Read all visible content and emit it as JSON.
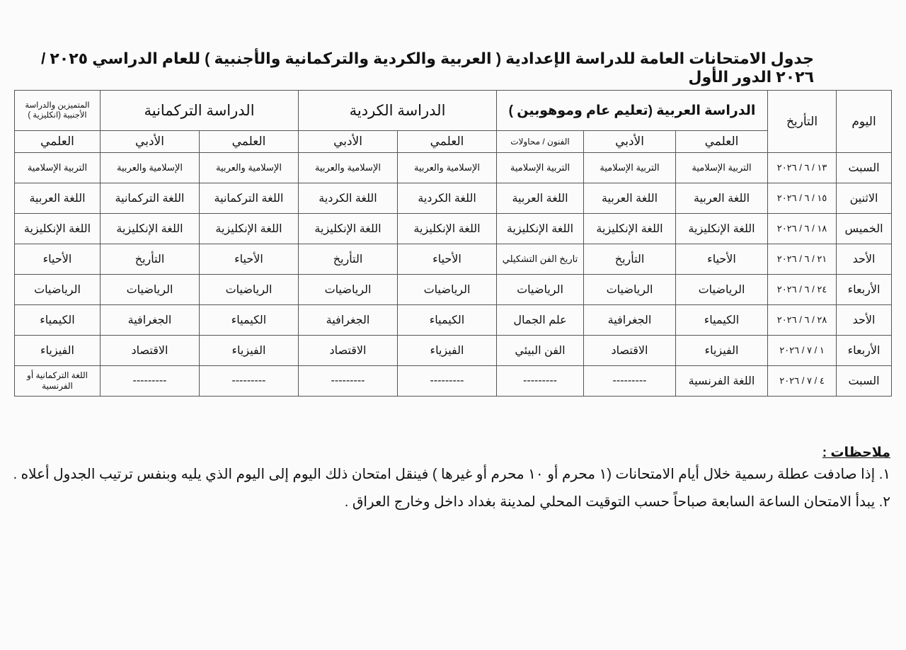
{
  "title": "جدول الامتحانات العامة للدراسة الإعدادية ( العربية والكردية والتركمانية والأجنبية ) للعام الدراسي ٢٠٢٥ / ٢٠٢٦ الدور الأول",
  "table": {
    "headers": {
      "day": "اليوم",
      "date": "التأريخ",
      "arabic_group": "الدراسة العربية (تعليم عام وموهوبين )",
      "kurdish_group": "الدراسة الكردية",
      "turkmen_group": "الدراسة التركمانية",
      "excellent_group": "المتميزين والدراسة الأجنبية (انكليزية )",
      "sub": [
        "العلمي",
        "الأدبي",
        "الفنون / محاولات",
        "العلمي",
        "الأدبي",
        "العلمي",
        "الأدبي",
        "العلمي"
      ]
    },
    "rows": [
      {
        "day": "السبت",
        "date": "١٣ / ٦ / ٢٠٢٦",
        "cells": [
          "التربية الإسلامية",
          "التربية الإسلامية",
          "التربية الإسلامية",
          "الإسلامية والعربية",
          "الإسلامية والعربية",
          "الإسلامية والعربية",
          "الإسلامية والعربية",
          "التربية الإسلامية"
        ]
      },
      {
        "day": "الاثنين",
        "date": "١٥ / ٦ / ٢٠٢٦",
        "cells": [
          "اللغة العربية",
          "اللغة العربية",
          "اللغة العربية",
          "اللغة الكردية",
          "اللغة الكردية",
          "اللغة التركمانية",
          "اللغة التركمانية",
          "اللغة العربية"
        ]
      },
      {
        "day": "الخميس",
        "date": "١٨ / ٦ / ٢٠٢٦",
        "cells": [
          "اللغة الإنكليزية",
          "اللغة الإنكليزية",
          "اللغة الإنكليزية",
          "اللغة الإنكليزية",
          "اللغة الإنكليزية",
          "اللغة الإنكليزية",
          "اللغة الإنكليزية",
          "اللغة الإنكليزية"
        ]
      },
      {
        "day": "الأحد",
        "date": "٢١ / ٦ / ٢٠٢٦",
        "cells": [
          "الأحياء",
          "التأريخ",
          "تاريخ الفن التشكيلي",
          "الأحياء",
          "التأريخ",
          "الأحياء",
          "التأريخ",
          "الأحياء"
        ]
      },
      {
        "day": "الأربعاء",
        "date": "٢٤ / ٦ / ٢٠٢٦",
        "cells": [
          "الرياضيات",
          "الرياضيات",
          "الرياضيات",
          "الرياضيات",
          "الرياضيات",
          "الرياضيات",
          "الرياضيات",
          "الرياضيات"
        ]
      },
      {
        "day": "الأحد",
        "date": "٢٨ / ٦ / ٢٠٢٦",
        "cells": [
          "الكيمياء",
          "الجغرافية",
          "علم الجمال",
          "الكيمياء",
          "الجغرافية",
          "الكيمياء",
          "الجغرافية",
          "الكيمياء"
        ]
      },
      {
        "day": "الأربعاء",
        "date": "١ / ٧ / ٢٠٢٦",
        "cells": [
          "الفيزياء",
          "الاقتصاد",
          "الفن البيئي",
          "الفيزياء",
          "الاقتصاد",
          "الفيزياء",
          "الاقتصاد",
          "الفيزياء"
        ]
      },
      {
        "day": "السبت",
        "date": "٤ / ٧ / ٢٠٢٦",
        "cells": [
          "اللغة الفرنسية",
          "---------",
          "---------",
          "---------",
          "---------",
          "---------",
          "---------",
          "اللغة التركمانية أو الفرنسية"
        ]
      }
    ]
  },
  "notes": {
    "heading": "ملاحظات :",
    "items": [
      "١. إذا صادفت عطلة رسمية خلال أيام الامتحانات (١ محرم أو ١٠ محرم أو غيرها ) فينقل امتحان ذلك اليوم إلى اليوم الذي يليه وبنفس ترتيب الجدول أعلاه .",
      "٢. يبدأ الامتحان الساعة السابعة صباحاً حسب التوقيت المحلي لمدينة بغداد داخل وخارج العراق ."
    ]
  }
}
